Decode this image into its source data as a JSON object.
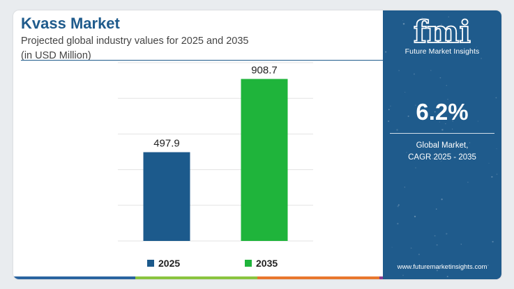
{
  "title": "Kvass Market",
  "subtitle_line1": "Projected global industry values for 2025 and 2035",
  "subtitle_line2": "(in USD Million)",
  "chart_data": {
    "type": "bar",
    "categories": [
      "2025",
      "2035"
    ],
    "values": [
      497.9,
      908.7
    ],
    "value_labels": [
      "497.9",
      "908.7"
    ],
    "colors": [
      "#1c5a8c",
      "#1fb43b"
    ],
    "ylim": [
      0,
      1000
    ],
    "grid": true,
    "legend": "bottom-center"
  },
  "sidebar": {
    "logo_text": "fmi",
    "logo_subtitle": "Future Market Insights",
    "cagr_value": "6.2%",
    "cagr_label_line1": "Global Market,",
    "cagr_label_line2": "CAGR 2025 - 2035",
    "website": "www.futuremarketinsights.com"
  },
  "colors": {
    "brand_blue": "#1f5b8c",
    "accent_green": "#1fb43b",
    "bottom_bar": [
      "#2a64a0",
      "#8ac43f",
      "#e8772e",
      "#8a3a8f"
    ]
  }
}
